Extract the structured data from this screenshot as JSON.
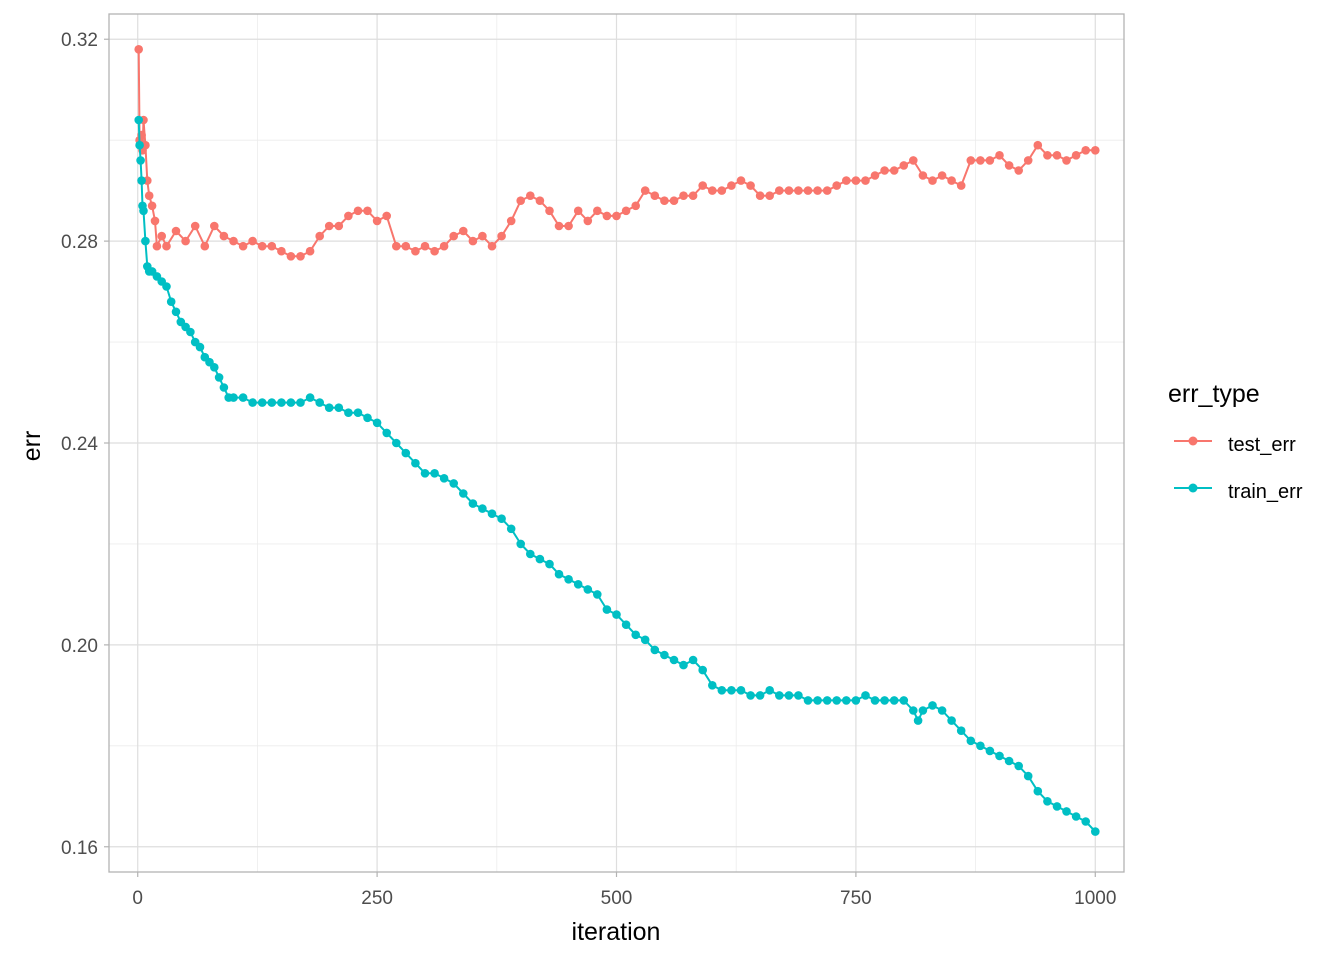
{
  "chart_data": {
    "type": "line",
    "xlabel": "iteration",
    "ylabel": "err",
    "xlim": [
      -30,
      1030
    ],
    "ylim": [
      0.155,
      0.325
    ],
    "x_ticks": [
      0,
      250,
      500,
      750,
      1000
    ],
    "x_tick_labels": [
      "0",
      "250",
      "500",
      "750",
      "1000"
    ],
    "y_ticks": [
      0.16,
      0.2,
      0.24,
      0.28,
      0.32
    ],
    "y_tick_labels": [
      "0.16",
      "0.20",
      "0.24",
      "0.28",
      "0.32"
    ],
    "grid": true,
    "markers": true,
    "legend": {
      "title": "err_type",
      "position": "right"
    },
    "series": [
      {
        "name": "test_err",
        "color": "#F8766D",
        "points": [
          [
            1,
            0.318
          ],
          [
            2,
            0.3
          ],
          [
            3,
            0.299
          ],
          [
            4,
            0.301
          ],
          [
            5,
            0.298
          ],
          [
            6,
            0.304
          ],
          [
            8,
            0.299
          ],
          [
            10,
            0.292
          ],
          [
            12,
            0.289
          ],
          [
            15,
            0.287
          ],
          [
            18,
            0.284
          ],
          [
            20,
            0.279
          ],
          [
            25,
            0.281
          ],
          [
            30,
            0.279
          ],
          [
            40,
            0.282
          ],
          [
            50,
            0.28
          ],
          [
            60,
            0.283
          ],
          [
            70,
            0.279
          ],
          [
            80,
            0.283
          ],
          [
            90,
            0.281
          ],
          [
            100,
            0.28
          ],
          [
            110,
            0.279
          ],
          [
            120,
            0.28
          ],
          [
            130,
            0.279
          ],
          [
            140,
            0.279
          ],
          [
            150,
            0.278
          ],
          [
            160,
            0.277
          ],
          [
            170,
            0.277
          ],
          [
            180,
            0.278
          ],
          [
            190,
            0.281
          ],
          [
            200,
            0.283
          ],
          [
            210,
            0.283
          ],
          [
            220,
            0.285
          ],
          [
            230,
            0.286
          ],
          [
            240,
            0.286
          ],
          [
            250,
            0.284
          ],
          [
            260,
            0.285
          ],
          [
            270,
            0.279
          ],
          [
            280,
            0.279
          ],
          [
            290,
            0.278
          ],
          [
            300,
            0.279
          ],
          [
            310,
            0.278
          ],
          [
            320,
            0.279
          ],
          [
            330,
            0.281
          ],
          [
            340,
            0.282
          ],
          [
            350,
            0.28
          ],
          [
            360,
            0.281
          ],
          [
            370,
            0.279
          ],
          [
            380,
            0.281
          ],
          [
            390,
            0.284
          ],
          [
            400,
            0.288
          ],
          [
            410,
            0.289
          ],
          [
            420,
            0.288
          ],
          [
            430,
            0.286
          ],
          [
            440,
            0.283
          ],
          [
            450,
            0.283
          ],
          [
            460,
            0.286
          ],
          [
            470,
            0.284
          ],
          [
            480,
            0.286
          ],
          [
            490,
            0.285
          ],
          [
            500,
            0.285
          ],
          [
            510,
            0.286
          ],
          [
            520,
            0.287
          ],
          [
            530,
            0.29
          ],
          [
            540,
            0.289
          ],
          [
            550,
            0.288
          ],
          [
            560,
            0.288
          ],
          [
            570,
            0.289
          ],
          [
            580,
            0.289
          ],
          [
            590,
            0.291
          ],
          [
            600,
            0.29
          ],
          [
            610,
            0.29
          ],
          [
            620,
            0.291
          ],
          [
            630,
            0.292
          ],
          [
            640,
            0.291
          ],
          [
            650,
            0.289
          ],
          [
            660,
            0.289
          ],
          [
            670,
            0.29
          ],
          [
            680,
            0.29
          ],
          [
            690,
            0.29
          ],
          [
            700,
            0.29
          ],
          [
            710,
            0.29
          ],
          [
            720,
            0.29
          ],
          [
            730,
            0.291
          ],
          [
            740,
            0.292
          ],
          [
            750,
            0.292
          ],
          [
            760,
            0.292
          ],
          [
            770,
            0.293
          ],
          [
            780,
            0.294
          ],
          [
            790,
            0.294
          ],
          [
            800,
            0.295
          ],
          [
            810,
            0.296
          ],
          [
            820,
            0.293
          ],
          [
            830,
            0.292
          ],
          [
            840,
            0.293
          ],
          [
            850,
            0.292
          ],
          [
            860,
            0.291
          ],
          [
            870,
            0.296
          ],
          [
            880,
            0.296
          ],
          [
            890,
            0.296
          ],
          [
            900,
            0.297
          ],
          [
            910,
            0.295
          ],
          [
            920,
            0.294
          ],
          [
            930,
            0.296
          ],
          [
            940,
            0.299
          ],
          [
            950,
            0.297
          ],
          [
            960,
            0.297
          ],
          [
            970,
            0.296
          ],
          [
            980,
            0.297
          ],
          [
            990,
            0.298
          ],
          [
            1000,
            0.298
          ]
        ]
      },
      {
        "name": "train_err",
        "color": "#00BFC4",
        "points": [
          [
            1,
            0.304
          ],
          [
            2,
            0.299
          ],
          [
            3,
            0.296
          ],
          [
            4,
            0.292
          ],
          [
            5,
            0.287
          ],
          [
            6,
            0.286
          ],
          [
            8,
            0.28
          ],
          [
            10,
            0.275
          ],
          [
            12,
            0.274
          ],
          [
            15,
            0.274
          ],
          [
            20,
            0.273
          ],
          [
            25,
            0.272
          ],
          [
            30,
            0.271
          ],
          [
            35,
            0.268
          ],
          [
            40,
            0.266
          ],
          [
            45,
            0.264
          ],
          [
            50,
            0.263
          ],
          [
            55,
            0.262
          ],
          [
            60,
            0.26
          ],
          [
            65,
            0.259
          ],
          [
            70,
            0.257
          ],
          [
            75,
            0.256
          ],
          [
            80,
            0.255
          ],
          [
            85,
            0.253
          ],
          [
            90,
            0.251
          ],
          [
            95,
            0.249
          ],
          [
            100,
            0.249
          ],
          [
            110,
            0.249
          ],
          [
            120,
            0.248
          ],
          [
            130,
            0.248
          ],
          [
            140,
            0.248
          ],
          [
            150,
            0.248
          ],
          [
            160,
            0.248
          ],
          [
            170,
            0.248
          ],
          [
            180,
            0.249
          ],
          [
            190,
            0.248
          ],
          [
            200,
            0.247
          ],
          [
            210,
            0.247
          ],
          [
            220,
            0.246
          ],
          [
            230,
            0.246
          ],
          [
            240,
            0.245
          ],
          [
            250,
            0.244
          ],
          [
            260,
            0.242
          ],
          [
            270,
            0.24
          ],
          [
            280,
            0.238
          ],
          [
            290,
            0.236
          ],
          [
            300,
            0.234
          ],
          [
            310,
            0.234
          ],
          [
            320,
            0.233
          ],
          [
            330,
            0.232
          ],
          [
            340,
            0.23
          ],
          [
            350,
            0.228
          ],
          [
            360,
            0.227
          ],
          [
            370,
            0.226
          ],
          [
            380,
            0.225
          ],
          [
            390,
            0.223
          ],
          [
            400,
            0.22
          ],
          [
            410,
            0.218
          ],
          [
            420,
            0.217
          ],
          [
            430,
            0.216
          ],
          [
            440,
            0.214
          ],
          [
            450,
            0.213
          ],
          [
            460,
            0.212
          ],
          [
            470,
            0.211
          ],
          [
            480,
            0.21
          ],
          [
            490,
            0.207
          ],
          [
            500,
            0.206
          ],
          [
            510,
            0.204
          ],
          [
            520,
            0.202
          ],
          [
            530,
            0.201
          ],
          [
            540,
            0.199
          ],
          [
            550,
            0.198
          ],
          [
            560,
            0.197
          ],
          [
            570,
            0.196
          ],
          [
            580,
            0.197
          ],
          [
            590,
            0.195
          ],
          [
            600,
            0.192
          ],
          [
            610,
            0.191
          ],
          [
            620,
            0.191
          ],
          [
            630,
            0.191
          ],
          [
            640,
            0.19
          ],
          [
            650,
            0.19
          ],
          [
            660,
            0.191
          ],
          [
            670,
            0.19
          ],
          [
            680,
            0.19
          ],
          [
            690,
            0.19
          ],
          [
            700,
            0.189
          ],
          [
            710,
            0.189
          ],
          [
            720,
            0.189
          ],
          [
            730,
            0.189
          ],
          [
            740,
            0.189
          ],
          [
            750,
            0.189
          ],
          [
            760,
            0.19
          ],
          [
            770,
            0.189
          ],
          [
            780,
            0.189
          ],
          [
            790,
            0.189
          ],
          [
            800,
            0.189
          ],
          [
            810,
            0.187
          ],
          [
            815,
            0.185
          ],
          [
            820,
            0.187
          ],
          [
            830,
            0.188
          ],
          [
            840,
            0.187
          ],
          [
            850,
            0.185
          ],
          [
            860,
            0.183
          ],
          [
            870,
            0.181
          ],
          [
            880,
            0.18
          ],
          [
            890,
            0.179
          ],
          [
            900,
            0.178
          ],
          [
            910,
            0.177
          ],
          [
            920,
            0.176
          ],
          [
            930,
            0.174
          ],
          [
            940,
            0.171
          ],
          [
            950,
            0.169
          ],
          [
            960,
            0.168
          ],
          [
            970,
            0.167
          ],
          [
            980,
            0.166
          ],
          [
            990,
            0.165
          ],
          [
            1000,
            0.163
          ]
        ]
      }
    ]
  }
}
